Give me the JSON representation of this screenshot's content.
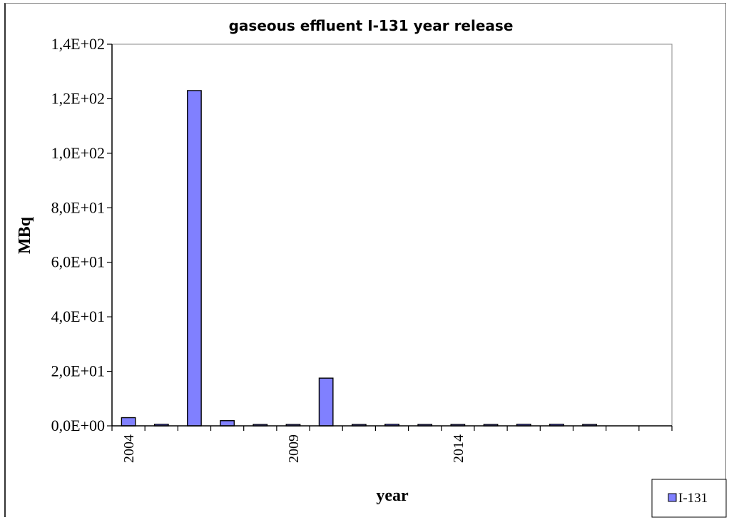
{
  "chart_data": {
    "type": "bar",
    "title": "gaseous effluent I-131 year release",
    "xlabel": "year",
    "ylabel": "MBq",
    "ylim": [
      0,
      140
    ],
    "y_ticks": [
      "0,0E+00",
      "2,0E+01",
      "4,0E+01",
      "6,0E+01",
      "8,0E+01",
      "1,0E+02",
      "1,2E+02",
      "1,4E+02"
    ],
    "x_tick_labels": [
      {
        "index": 0,
        "label": "2004"
      },
      {
        "index": 5,
        "label": "2009"
      },
      {
        "index": 10,
        "label": "2014"
      }
    ],
    "categories": [
      "2004",
      "2005",
      "2006",
      "2007",
      "2008",
      "2009",
      "2010",
      "2011",
      "2012",
      "2013",
      "2014",
      "2015",
      "2016",
      "2017",
      "2018",
      "2019",
      "2020"
    ],
    "series": [
      {
        "name": "I-131",
        "color": "#8080ff",
        "values": [
          3.0,
          0.6,
          123.0,
          1.9,
          0.3,
          0.3,
          17.5,
          0.3,
          0.6,
          0.3,
          0.3,
          0.4,
          0.6,
          0.6,
          0.4,
          0,
          0
        ]
      }
    ],
    "grid": false,
    "legend": "bottom-right"
  }
}
